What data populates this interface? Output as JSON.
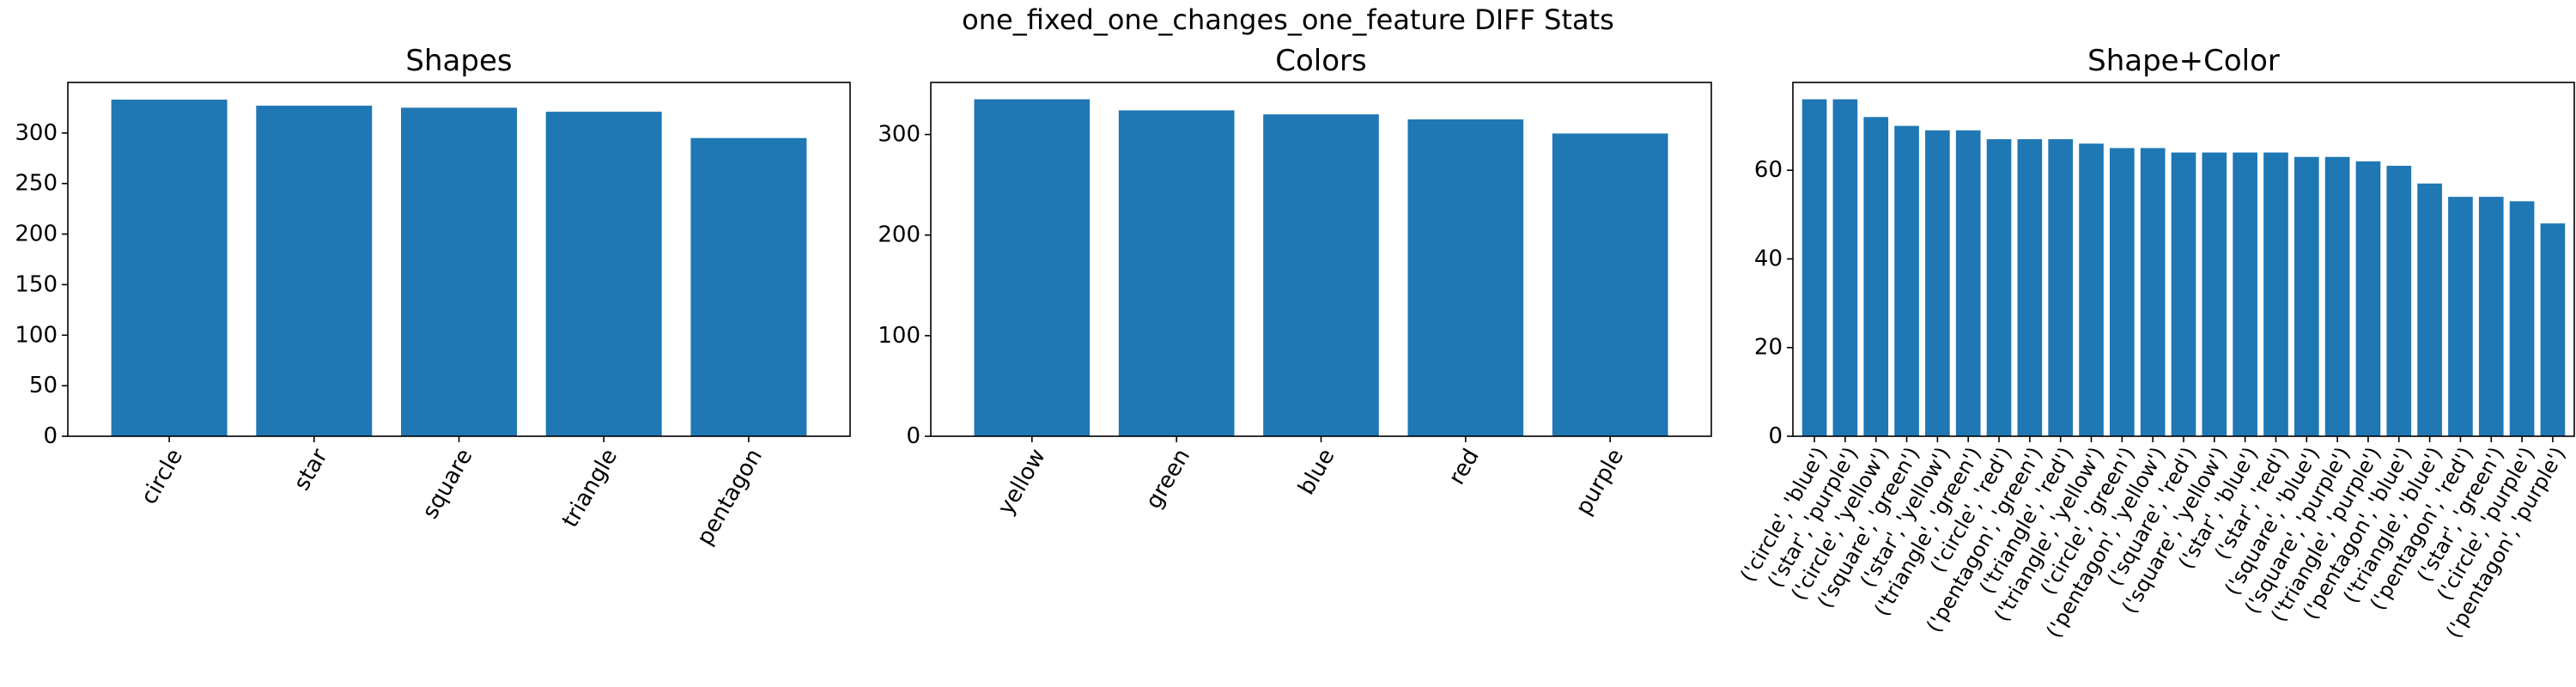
{
  "figure": {
    "title": "one_fixed_one_changes_one_feature DIFF Stats"
  },
  "colors": {
    "bar": "#1f77b4",
    "axis": "#000000",
    "background": "#ffffff"
  },
  "chart_data": [
    {
      "type": "bar",
      "title": "Shapes",
      "xlabel": "",
      "ylabel": "",
      "categories": [
        "circle",
        "star",
        "square",
        "triangle",
        "pentagon"
      ],
      "values": [
        333,
        327,
        325,
        321,
        295
      ],
      "ylim": [
        0,
        350
      ],
      "yticks": [
        0,
        50,
        100,
        150,
        200,
        250,
        300
      ],
      "grid": false,
      "legend": "none"
    },
    {
      "type": "bar",
      "title": "Colors",
      "xlabel": "",
      "ylabel": "",
      "categories": [
        "yellow",
        "green",
        "blue",
        "red",
        "purple"
      ],
      "values": [
        335,
        324,
        320,
        315,
        301
      ],
      "ylim": [
        0,
        351.75
      ],
      "yticks": [
        0,
        100,
        200,
        300
      ],
      "grid": false,
      "legend": "none"
    },
    {
      "type": "bar",
      "title": "Shape+Color",
      "xlabel": "",
      "ylabel": "",
      "categories": [
        "('circle', 'blue')",
        "('star', 'purple')",
        "('circle', 'yellow')",
        "('square', 'green')",
        "('star', 'yellow')",
        "('triangle', 'green')",
        "('circle', 'red')",
        "('pentagon', 'green')",
        "('triangle', 'red')",
        "('triangle', 'yellow')",
        "('circle', 'green')",
        "('pentagon', 'yellow')",
        "('square', 'red')",
        "('square', 'yellow')",
        "('star', 'blue')",
        "('star', 'red')",
        "('square', 'blue')",
        "('square', 'purple')",
        "('triangle', 'purple')",
        "('pentagon', 'blue')",
        "('triangle', 'blue')",
        "('pentagon', 'red')",
        "('star', 'green')",
        "('circle', 'purple')",
        "('pentagon', 'purple')"
      ],
      "values": [
        76,
        76,
        72,
        70,
        69,
        69,
        67,
        67,
        67,
        66,
        65,
        65,
        64,
        64,
        64,
        64,
        63,
        63,
        62,
        61,
        57,
        54,
        54,
        53,
        48
      ],
      "ylim": [
        0,
        79.8
      ],
      "yticks": [
        0,
        20,
        40,
        60
      ],
      "grid": false,
      "legend": "none"
    }
  ]
}
